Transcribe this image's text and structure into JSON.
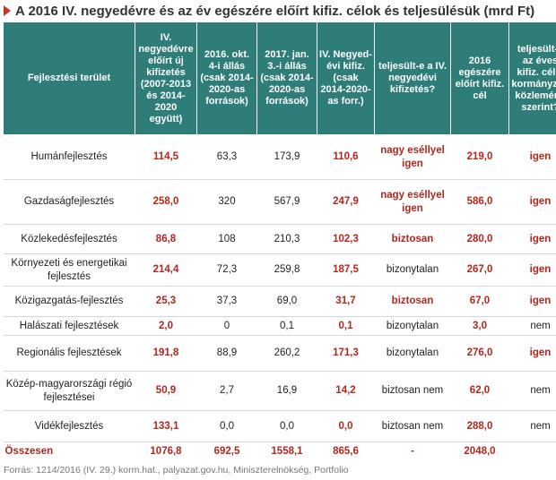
{
  "title": "A 2016 IV. negyedévre és az év egészére előírt kifiz. célok és teljesülésük (mrd Ft)",
  "columns": [
    "Fejlesztési terület",
    "IV. negyedévre előírt új kifizetés (2007-2013 és 2014-2020 együtt)",
    "2016. okt. 4-i állás (csak 2014-2020-as források)",
    "2017. jan. 3.-i állás (csak 2014-2020-as források)",
    "IV. Negyed-évi kifiz. (csak 2014-2020-as forr.)",
    "teljesült-e a IV. negyedévi kifizetés?",
    "2016 egészére előírt kifiz. cél",
    "teljesült-e az éves kifiz. cél a kormányzati közlemény szerint?"
  ],
  "rows": [
    {
      "area": "Humánfejlesztés",
      "target_q4": "114,5",
      "oct4": "63,3",
      "jan3": "173,9",
      "q4_paid": "110,6",
      "q4_met": "nagy eséllyel igen",
      "q4_met_style": "red",
      "annual_target": "219,0",
      "annual_met": "igen",
      "annual_met_style": "red"
    },
    {
      "area": "Gazdaságfejlesztés",
      "target_q4": "258,0",
      "oct4": "320",
      "jan3": "567,9",
      "q4_paid": "247,9",
      "q4_met": "nagy eséllyel igen",
      "q4_met_style": "red",
      "annual_target": "586,0",
      "annual_met": "igen",
      "annual_met_style": "red"
    },
    {
      "area": "Közlekedésfejlesztés",
      "target_q4": "86,8",
      "oct4": "108",
      "jan3": "210,3",
      "q4_paid": "102,3",
      "q4_met": "biztosan",
      "q4_met_style": "red",
      "annual_target": "280,0",
      "annual_met": "igen",
      "annual_met_style": "red"
    },
    {
      "area": "Környezeti és energetikai fejlesztés",
      "target_q4": "214,4",
      "oct4": "72,3",
      "jan3": "259,8",
      "q4_paid": "187,5",
      "q4_met": "bizonytalan",
      "q4_met_style": "plain",
      "annual_target": "267,0",
      "annual_met": "igen",
      "annual_met_style": "red"
    },
    {
      "area": "Közigazgatás-fejlesztés",
      "target_q4": "25,3",
      "oct4": "37,3",
      "jan3": "69,0",
      "q4_paid": "31,7",
      "q4_met": "biztosan",
      "q4_met_style": "red",
      "annual_target": "67,0",
      "annual_met": "igen",
      "annual_met_style": "red"
    },
    {
      "area": "Halászati fejlesztések",
      "target_q4": "2,0",
      "oct4": "0",
      "jan3": "0,1",
      "q4_paid": "0,1",
      "q4_met": "bizonytalan",
      "q4_met_style": "plain",
      "annual_target": "3,0",
      "annual_met": "nem",
      "annual_met_style": "plain"
    },
    {
      "area": "Regionális fejlesztések",
      "target_q4": "191,8",
      "oct4": "88,9",
      "jan3": "260,2",
      "q4_paid": "171,3",
      "q4_met": "bizonytalan",
      "q4_met_style": "plain",
      "annual_target": "276,0",
      "annual_met": "igen",
      "annual_met_style": "red"
    },
    {
      "area": "Közép-magyarországi régió fejlesztései",
      "target_q4": "50,9",
      "oct4": "2,7",
      "jan3": "16,9",
      "q4_paid": "14,2",
      "q4_met": "biztosan nem",
      "q4_met_style": "plain",
      "annual_target": "62,0",
      "annual_met": "nem",
      "annual_met_style": "plain"
    },
    {
      "area": "Vidékfejlesztés",
      "target_q4": "133,1",
      "oct4": "0,0",
      "jan3": "0,0",
      "q4_paid": "0,0",
      "q4_met": "biztosan nem",
      "q4_met_style": "plain",
      "annual_target": "288,0",
      "annual_met": "nem",
      "annual_met_style": "plain"
    }
  ],
  "total": {
    "label": "Összesen",
    "target_q4": "1076,8",
    "oct4": "692,5",
    "jan3": "1558,1",
    "q4_paid": "865,6",
    "q4_met": "-",
    "annual_target": "2048,0",
    "annual_met": ""
  },
  "source": "Forrás: 1214/2016 (IV. 29.) korm.hat., palyazat.gov.hu, Miniszterelnökség, Portfolio",
  "colors": {
    "header_bg": "#2e7d79",
    "accent_red": "#b3261e"
  }
}
